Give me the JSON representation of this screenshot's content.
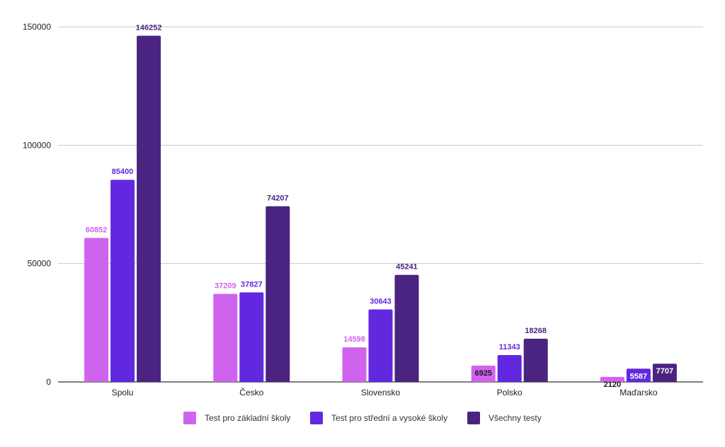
{
  "chart_data": {
    "type": "bar",
    "categories": [
      "Spolu",
      "Česko",
      "Slovensko",
      "Polsko",
      "Maďarsko"
    ],
    "series": [
      {
        "name": "Test pro základní školy",
        "color": "#d063ee",
        "values": [
          60852,
          37209,
          14598,
          6925,
          2120
        ]
      },
      {
        "name": "Test pro střední a vysoké školy",
        "color": "#6228e0",
        "values": [
          85400,
          37827,
          30643,
          11343,
          5587
        ]
      },
      {
        "name": "Všechny testy",
        "color": "#4b2380",
        "values": [
          146252,
          74207,
          45241,
          18268,
          7707
        ]
      }
    ],
    "data_labels": [
      [
        "60852",
        "85400",
        "146252"
      ],
      [
        "37209",
        "37827",
        "74207"
      ],
      [
        "14598",
        "30643",
        "45241"
      ],
      [
        "6925",
        "11343",
        "18268"
      ],
      [
        "2120",
        "5587",
        "7707"
      ]
    ],
    "inside_label_color": "#ffffff",
    "dark_label_color": "#1a1a1a",
    "yticks": [
      0,
      50000,
      100000,
      150000
    ],
    "ylim": [
      0,
      150000
    ],
    "grid": true,
    "legend_position": "bottom"
  }
}
